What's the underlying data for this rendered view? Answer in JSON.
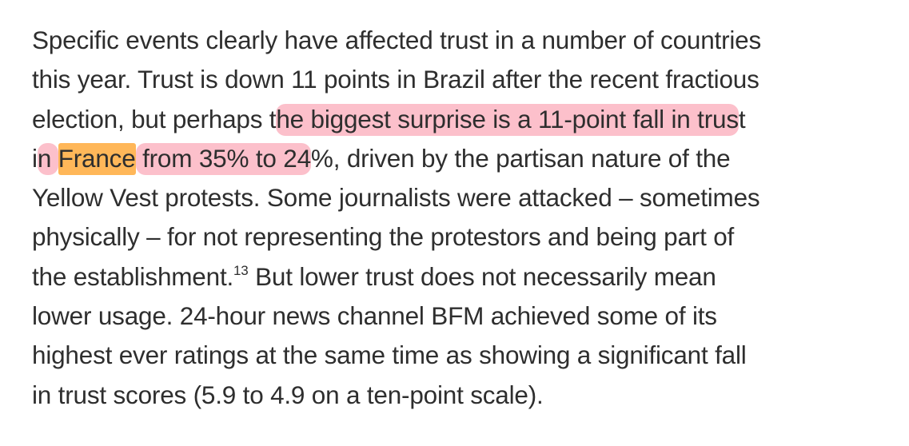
{
  "paragraph": {
    "lines": [
      "Specific events clearly have affected trust in a number of countries",
      "this year. Trust is down 11 points in Brazil after the recent fractious",
      "election, but perhaps t",
      "he biggest surprise is a 11-point fall in trus",
      "t",
      "i",
      "n ",
      "France",
      " from 35% to 24",
      "%, driven by the partisan nature of the",
      "Yellow Vest protests. Some journalists were attacked – sometimes",
      "physically – for not representing the protestors and being part of",
      "the establishment.",
      "13",
      " But lower trust does not necessarily mean",
      "lower usage. 24-hour news channel BFM achieved some of its",
      "highest ever ratings at the same time as showing a significant fall",
      "in trust scores (5.9 to 4.9 on a ten-point scale)."
    ]
  },
  "highlight_colors": {
    "pink": "#f8a0ae",
    "orange": "#ffb23c"
  }
}
